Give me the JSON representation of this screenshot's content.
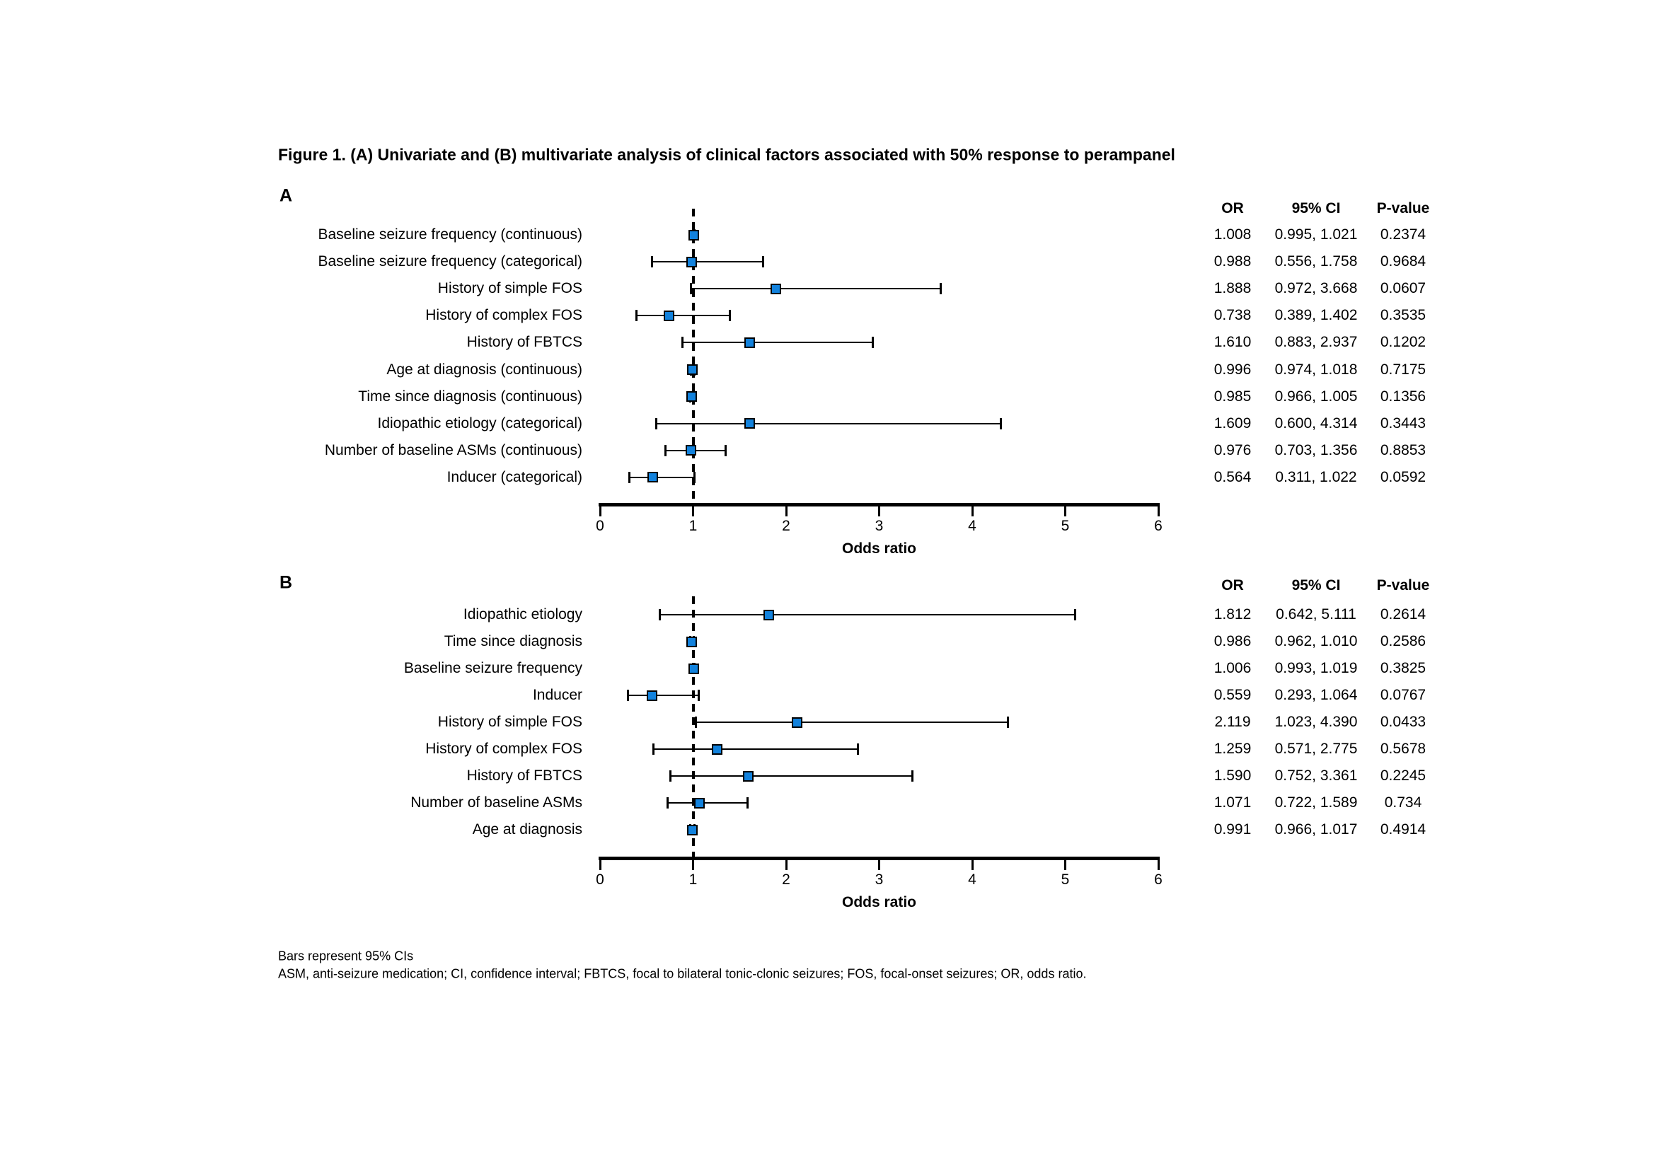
{
  "title": "Figure 1. (A) Univariate and (B) multivariate analysis of clinical factors associated with 50% response to perampanel",
  "axis": {
    "label": "Odds ratio",
    "min": 0,
    "max": 6,
    "ticks": [
      0,
      1,
      2,
      3,
      4,
      5,
      6
    ],
    "reference_line": 1
  },
  "table_headers": {
    "or": "OR",
    "ci": "95% CI",
    "p": "P-value"
  },
  "colors": {
    "marker_fill": "#1282dd",
    "marker_border": "#000000",
    "line": "#000000"
  },
  "footnotes": [
    "Bars represent 95% CIs",
    "ASM, anti-seizure medication; CI, confidence interval; FBTCS, focal to bilateral tonic-clonic seizures; FOS, focal-onset seizures; OR, odds ratio."
  ],
  "chart_data": [
    {
      "type": "forest",
      "panel": "A",
      "xlabel": "Odds ratio",
      "xlim": [
        0,
        6
      ],
      "reference_line": 1,
      "rows": [
        {
          "label": "Baseline seizure frequency (continuous)",
          "or": "1.008",
          "or_value": 1.008,
          "ci": "0.995, 1.021",
          "ci_low": 0.995,
          "ci_high": 1.021,
          "p": "0.2374"
        },
        {
          "label": "Baseline seizure frequency (categorical)",
          "or": "0.988",
          "or_value": 0.988,
          "ci": "0.556, 1.758",
          "ci_low": 0.556,
          "ci_high": 1.758,
          "p": "0.9684"
        },
        {
          "label": "History of simple FOS",
          "or": "1.888",
          "or_value": 1.888,
          "ci": "0.972, 3.668",
          "ci_low": 0.972,
          "ci_high": 3.668,
          "p": "0.0607"
        },
        {
          "label": "History of complex FOS",
          "or": "0.738",
          "or_value": 0.738,
          "ci": "0.389, 1.402",
          "ci_low": 0.389,
          "ci_high": 1.402,
          "p": "0.3535"
        },
        {
          "label": "History of FBTCS",
          "or": "1.610",
          "or_value": 1.61,
          "ci": "0.883, 2.937",
          "ci_low": 0.883,
          "ci_high": 2.937,
          "p": "0.1202"
        },
        {
          "label": "Age at diagnosis (continuous)",
          "or": "0.996",
          "or_value": 0.996,
          "ci": "0.974, 1.018",
          "ci_low": 0.974,
          "ci_high": 1.018,
          "p": "0.7175"
        },
        {
          "label": "Time since diagnosis (continuous)",
          "or": "0.985",
          "or_value": 0.985,
          "ci": "0.966, 1.005",
          "ci_low": 0.966,
          "ci_high": 1.005,
          "p": "0.1356"
        },
        {
          "label": "Idiopathic etiology (categorical)",
          "or": "1.609",
          "or_value": 1.609,
          "ci": "0.600, 4.314",
          "ci_low": 0.6,
          "ci_high": 4.314,
          "p": "0.3443"
        },
        {
          "label": "Number of baseline ASMs (continuous)",
          "or": "0.976",
          "or_value": 0.976,
          "ci": "0.703, 1.356",
          "ci_low": 0.703,
          "ci_high": 1.356,
          "p": "0.8853"
        },
        {
          "label": "Inducer (categorical)",
          "or": "0.564",
          "or_value": 0.564,
          "ci": "0.311, 1.022",
          "ci_low": 0.311,
          "ci_high": 1.022,
          "p": "0.0592"
        }
      ]
    },
    {
      "type": "forest",
      "panel": "B",
      "xlabel": "Odds ratio",
      "xlim": [
        0,
        6
      ],
      "reference_line": 1,
      "rows": [
        {
          "label": "Idiopathic etiology",
          "or": "1.812",
          "or_value": 1.812,
          "ci": "0.642, 5.111",
          "ci_low": 0.642,
          "ci_high": 5.111,
          "p": "0.2614"
        },
        {
          "label": "Time since diagnosis",
          "or": "0.986",
          "or_value": 0.986,
          "ci": "0.962, 1.010",
          "ci_low": 0.962,
          "ci_high": 1.01,
          "p": "0.2586"
        },
        {
          "label": "Baseline seizure frequency",
          "or": "1.006",
          "or_value": 1.006,
          "ci": "0.993, 1.019",
          "ci_low": 0.993,
          "ci_high": 1.019,
          "p": "0.3825"
        },
        {
          "label": "Inducer",
          "or": "0.559",
          "or_value": 0.559,
          "ci": "0.293, 1.064",
          "ci_low": 0.293,
          "ci_high": 1.064,
          "p": "0.0767"
        },
        {
          "label": "History of simple FOS",
          "or": "2.119",
          "or_value": 2.119,
          "ci": "1.023, 4.390",
          "ci_low": 1.023,
          "ci_high": 4.39,
          "p": "0.0433"
        },
        {
          "label": "History of complex FOS",
          "or": "1.259",
          "or_value": 1.259,
          "ci": "0.571, 2.775",
          "ci_low": 0.571,
          "ci_high": 2.775,
          "p": "0.5678"
        },
        {
          "label": "History of FBTCS",
          "or": "1.590",
          "or_value": 1.59,
          "ci": "0.752, 3.361",
          "ci_low": 0.752,
          "ci_high": 3.361,
          "p": "0.2245"
        },
        {
          "label": "Number of baseline ASMs",
          "or": "1.071",
          "or_value": 1.071,
          "ci": "0.722, 1.589",
          "ci_low": 0.722,
          "ci_high": 1.589,
          "p": "0.734"
        },
        {
          "label": "Age at diagnosis",
          "or": "0.991",
          "or_value": 0.991,
          "ci": "0.966, 1.017",
          "ci_low": 0.966,
          "ci_high": 1.017,
          "p": "0.4914"
        }
      ]
    }
  ]
}
